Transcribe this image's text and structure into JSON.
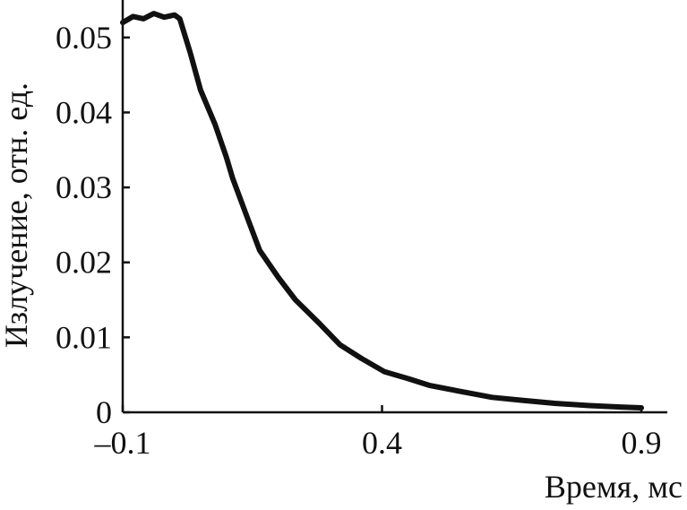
{
  "chart_data": {
    "type": "line",
    "y_label": "Излучение, отн. ед.",
    "x_label": "Время, мс",
    "xlim": [
      -0.1,
      0.95
    ],
    "ylim": [
      0,
      0.055
    ],
    "xticks": [
      {
        "value": -0.1,
        "label": "–0.1"
      },
      0.4,
      0.9
    ],
    "yticks": [
      0,
      0.01,
      0.02,
      0.03,
      0.04,
      0.05
    ],
    "series": [
      {
        "color": "#111111",
        "x": [
          -0.1,
          -0.08,
          -0.06,
          -0.04,
          -0.02,
          0.0,
          0.01,
          0.03,
          0.05,
          0.078,
          0.1,
          0.112,
          0.14,
          0.164,
          0.2,
          0.233,
          0.28,
          0.319,
          0.36,
          0.405,
          0.45,
          0.491,
          0.55,
          0.612,
          0.67,
          0.733,
          0.8,
          0.86,
          0.9
        ],
        "values": [
          0.052,
          0.0528,
          0.0525,
          0.0532,
          0.0527,
          0.053,
          0.0525,
          0.048,
          0.043,
          0.0384,
          0.034,
          0.0312,
          0.026,
          0.0216,
          0.018,
          0.015,
          0.0118,
          0.009,
          0.0072,
          0.0054,
          0.0045,
          0.0036,
          0.0028,
          0.002,
          0.0016,
          0.0012,
          0.0009,
          0.0007,
          0.0006
        ]
      }
    ]
  }
}
